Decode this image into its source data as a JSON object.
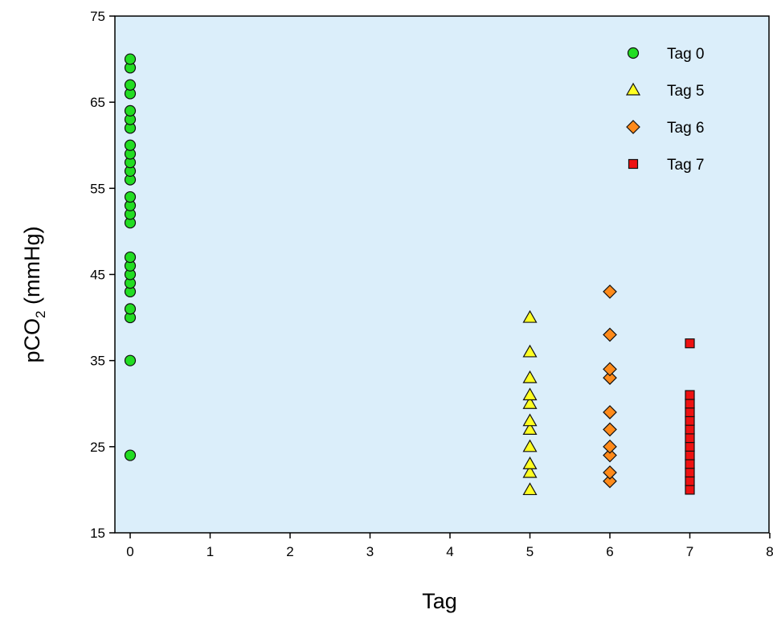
{
  "colors": {
    "plot_background": "#dbeefa",
    "series_tag0": "#22dd22",
    "series_tag5": "#ffff22",
    "series_tag6": "#ff8a1a",
    "series_tag7": "#ee1111",
    "marker_outline": "#111111"
  },
  "chart_data": {
    "type": "scatter",
    "xlabel": "Tag",
    "ylabel": "pCO",
    "ylabel_subscript": "2",
    "ylabel_unit": " (mmHg)",
    "xlim": [
      0,
      8
    ],
    "ylim": [
      15,
      75
    ],
    "xticks": [
      "0",
      "1",
      "2",
      "3",
      "4",
      "5",
      "6",
      "7",
      "8"
    ],
    "yticks": [
      "15",
      "25",
      "35",
      "45",
      "55",
      "65",
      "75"
    ],
    "grid": false,
    "legend_position": "top-right",
    "series": [
      {
        "name": "Tag 0",
        "marker": "circle",
        "color": "#22dd22",
        "x": 0,
        "values": [
          24,
          35,
          40,
          41,
          43,
          44,
          45,
          46,
          47,
          51,
          52,
          53,
          54,
          56,
          57,
          58,
          59,
          60,
          62,
          63,
          64,
          66,
          67,
          69,
          70
        ]
      },
      {
        "name": "Tag 5",
        "marker": "triangle",
        "color": "#ffff22",
        "x": 5,
        "values": [
          20,
          22,
          23,
          25,
          27,
          28,
          30,
          31,
          33,
          36,
          40
        ]
      },
      {
        "name": "Tag 6",
        "marker": "diamond",
        "color": "#ff8a1a",
        "x": 6,
        "values": [
          21,
          22,
          24,
          25,
          27,
          29,
          33,
          34,
          38,
          43
        ]
      },
      {
        "name": "Tag 7",
        "marker": "square",
        "color": "#ee1111",
        "x": 7,
        "values": [
          20,
          21,
          22,
          23,
          24,
          25,
          26,
          27,
          28,
          29,
          30,
          31,
          37
        ]
      }
    ]
  }
}
